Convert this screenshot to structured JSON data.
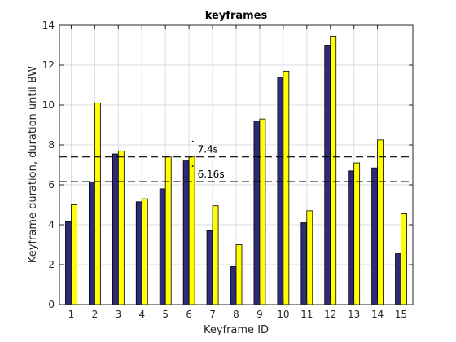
{
  "chart_data": {
    "type": "bar",
    "title": "keyframes",
    "xlabel": "Keyframe ID",
    "ylabel": "Keyframe duration, duration until BW",
    "categories": [
      "1",
      "2",
      "3",
      "4",
      "5",
      "6",
      "7",
      "8",
      "9",
      "10",
      "11",
      "12",
      "13",
      "14",
      "15"
    ],
    "series": [
      {
        "values": [
          4.15,
          6.15,
          7.55,
          5.15,
          5.8,
          7.2,
          3.7,
          1.9,
          9.2,
          11.4,
          4.1,
          13.0,
          6.7,
          6.85,
          2.55
        ],
        "color": "#2e2a7a"
      },
      {
        "values": [
          5.0,
          10.1,
          7.7,
          5.3,
          7.4,
          7.4,
          4.95,
          3.0,
          9.3,
          11.7,
          4.7,
          13.45,
          7.1,
          8.25,
          4.55
        ],
        "color": "#ffff00"
      }
    ],
    "ylim": [
      0,
      14
    ],
    "yticks": [
      "0",
      "2",
      "4",
      "6",
      "8",
      "10",
      "12",
      "14"
    ],
    "grid": true,
    "reference_lines": [
      {
        "value": 7.4,
        "label": "7.4s"
      },
      {
        "value": 6.16,
        "label": "6.16s"
      }
    ]
  }
}
